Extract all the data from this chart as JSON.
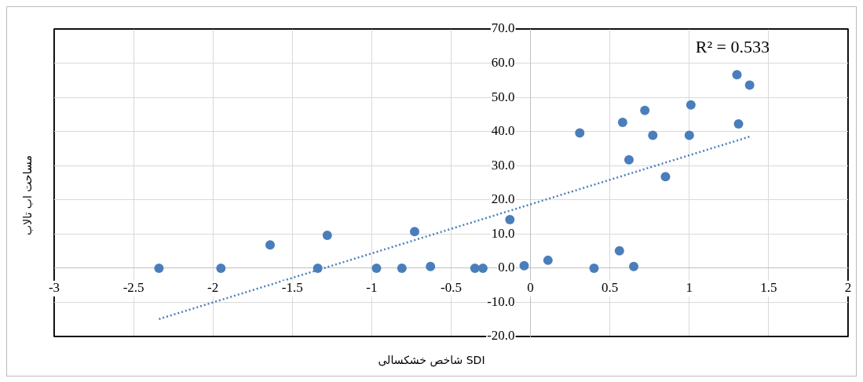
{
  "chart_data": {
    "type": "scatter",
    "xlabel": "شاخص خشکسالی SDI",
    "ylabel": "مساحت اب تالاب",
    "annotations": [
      "R² = 0.533"
    ],
    "series": [
      {
        "type": "scatter",
        "color": "#4a7ebb",
        "marker": "circle",
        "x": [
          -2.34,
          -1.95,
          -1.64,
          -1.34,
          -1.28,
          -0.97,
          -0.81,
          -0.73,
          -0.63,
          -0.35,
          -0.3,
          -0.13,
          -0.04,
          0.11,
          0.31,
          0.4,
          0.56,
          0.58,
          0.62,
          0.65,
          0.72,
          0.77,
          0.85,
          1.0,
          1.01,
          1.3,
          1.31,
          1.38
        ],
        "values": [
          0,
          0,
          6.8,
          0,
          9.6,
          0,
          0,
          10.7,
          0.5,
          0,
          0,
          14.2,
          0.7,
          2.3,
          39.6,
          0,
          5.1,
          42.7,
          31.7,
          0.5,
          46.2,
          38.9,
          26.8,
          38.9,
          47.8,
          56.6,
          42.2,
          53.6
        ]
      },
      {
        "type": "line",
        "color": "#4a7ebb",
        "marker": "none",
        "line_style": "dotted",
        "x": [
          -2.34,
          1.38
        ],
        "values": [
          -14.9,
          38.5
        ]
      }
    ],
    "xlim": [
      -3,
      2
    ],
    "xticks": [
      -3,
      -2.5,
      -2,
      -1.5,
      -1,
      -0.5,
      0,
      0.5,
      1,
      1.5,
      2
    ],
    "ylim": [
      -20,
      70
    ],
    "yticks": [
      {
        "value": -20,
        "label": "-20.0"
      },
      {
        "value": -10,
        "label": "-10.0"
      },
      {
        "value": 0,
        "label": "0.0"
      },
      {
        "value": 10,
        "label": "10.0"
      },
      {
        "value": 20,
        "label": "20.0"
      },
      {
        "value": 30,
        "label": "30.0"
      },
      {
        "value": 40,
        "label": "40.0"
      },
      {
        "value": 50,
        "label": "50.0"
      },
      {
        "value": 60,
        "label": "60.0"
      },
      {
        "value": 70,
        "label": "70.0"
      }
    ],
    "grid": true
  }
}
